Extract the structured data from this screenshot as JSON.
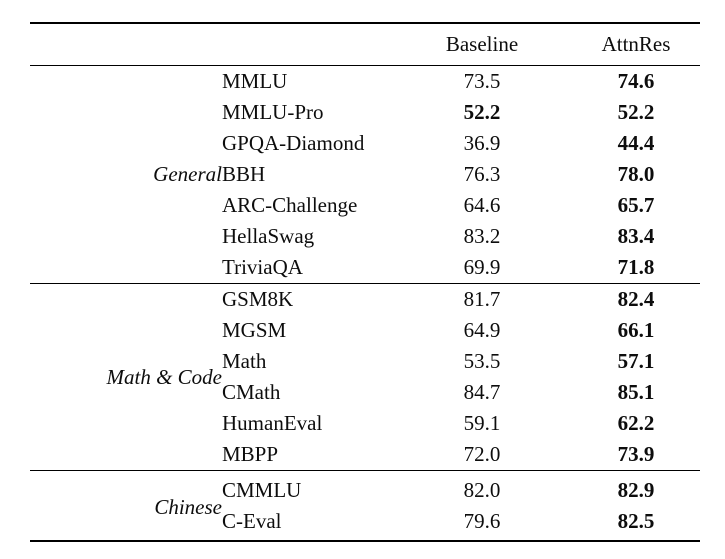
{
  "page": {
    "background": "#ffffff",
    "text_color": "#0d0d0d",
    "rule_color": "#000000"
  },
  "table": {
    "header": {
      "baseline": "Baseline",
      "attnres": "AttnRes"
    },
    "groups": [
      {
        "label": "General",
        "rows": [
          {
            "benchmark": "MMLU",
            "baseline": "73.5",
            "baseline_bold": false,
            "attnres": "74.6",
            "attnres_bold": true
          },
          {
            "benchmark": "MMLU-Pro",
            "baseline": "52.2",
            "baseline_bold": true,
            "attnres": "52.2",
            "attnres_bold": true
          },
          {
            "benchmark": "GPQA-Diamond",
            "baseline": "36.9",
            "baseline_bold": false,
            "attnres": "44.4",
            "attnres_bold": true
          },
          {
            "benchmark": "BBH",
            "baseline": "76.3",
            "baseline_bold": false,
            "attnres": "78.0",
            "attnres_bold": true
          },
          {
            "benchmark": "ARC-Challenge",
            "baseline": "64.6",
            "baseline_bold": false,
            "attnres": "65.7",
            "attnres_bold": true
          },
          {
            "benchmark": "HellaSwag",
            "baseline": "83.2",
            "baseline_bold": false,
            "attnres": "83.4",
            "attnres_bold": true
          },
          {
            "benchmark": "TriviaQA",
            "baseline": "69.9",
            "baseline_bold": false,
            "attnres": "71.8",
            "attnres_bold": true
          }
        ]
      },
      {
        "label": "Math & Code",
        "rows": [
          {
            "benchmark": "GSM8K",
            "baseline": "81.7",
            "baseline_bold": false,
            "attnres": "82.4",
            "attnres_bold": true
          },
          {
            "benchmark": "MGSM",
            "baseline": "64.9",
            "baseline_bold": false,
            "attnres": "66.1",
            "attnres_bold": true
          },
          {
            "benchmark": "Math",
            "baseline": "53.5",
            "baseline_bold": false,
            "attnres": "57.1",
            "attnres_bold": true
          },
          {
            "benchmark": "CMath",
            "baseline": "84.7",
            "baseline_bold": false,
            "attnres": "85.1",
            "attnres_bold": true
          },
          {
            "benchmark": "HumanEval",
            "baseline": "59.1",
            "baseline_bold": false,
            "attnres": "62.2",
            "attnres_bold": true
          },
          {
            "benchmark": "MBPP",
            "baseline": "72.0",
            "baseline_bold": false,
            "attnres": "73.9",
            "attnres_bold": true
          }
        ]
      },
      {
        "label": "Chinese",
        "rows": [
          {
            "benchmark": "CMMLU",
            "baseline": "82.0",
            "baseline_bold": false,
            "attnres": "82.9",
            "attnres_bold": true
          },
          {
            "benchmark": "C-Eval",
            "baseline": "79.6",
            "baseline_bold": false,
            "attnres": "82.5",
            "attnres_bold": true
          }
        ]
      }
    ]
  }
}
